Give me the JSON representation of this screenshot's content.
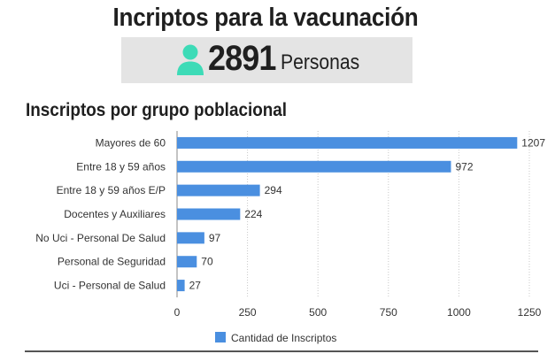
{
  "header": {
    "title": "Incriptos para la vacunación",
    "count": "2891",
    "count_unit": "Personas",
    "icon": "person-icon",
    "icon_color": "#3ddbb7"
  },
  "chart_data": {
    "type": "bar",
    "orientation": "horizontal",
    "title": "Inscriptos por grupo poblacional",
    "categories": [
      "Mayores de 60",
      "Entre 18 y 59 años",
      "Entre 18 y 59 años E/P",
      "Docentes y Auxiliares",
      "No Uci - Personal De Salud",
      "Personal de Seguridad",
      "Uci - Personal de Salud"
    ],
    "series": [
      {
        "name": "Cantidad de Inscriptos",
        "color": "#4a8fe0",
        "values": [
          1207,
          972,
          294,
          224,
          97,
          70,
          27
        ]
      }
    ],
    "xlim": [
      0,
      1250
    ],
    "xticks": [
      "0",
      "250",
      "500",
      "750",
      "1000",
      "1250"
    ],
    "grid": true,
    "legend": "bottom-center"
  }
}
